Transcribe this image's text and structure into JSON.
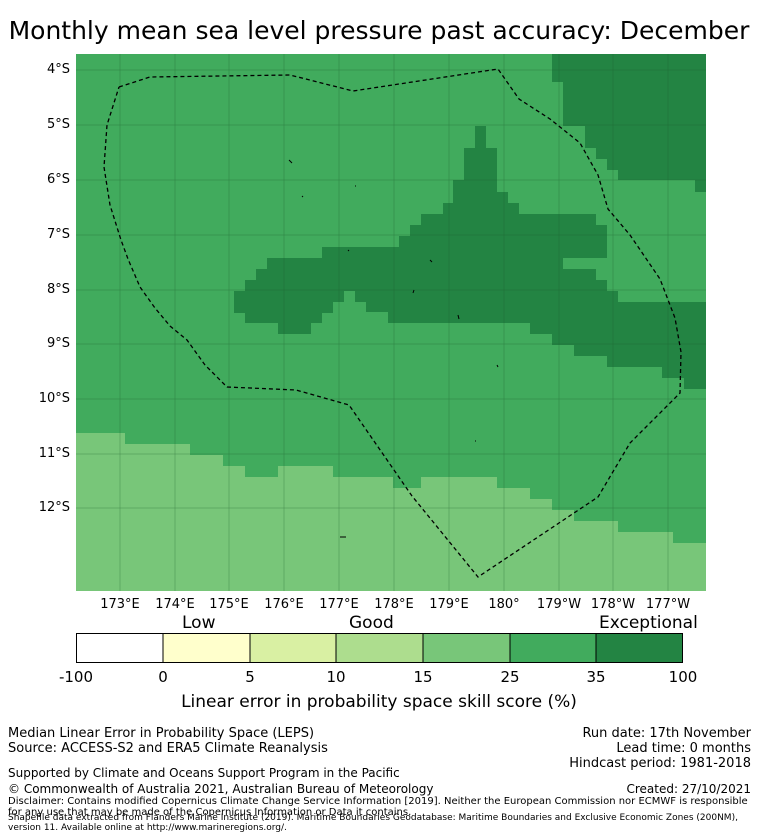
{
  "title": "Monthly mean sea level pressure past accuracy: December",
  "map": {
    "lat_labels": [
      "4°S",
      "5°S",
      "6°S",
      "7°S",
      "8°S",
      "9°S",
      "10°S",
      "11°S",
      "12°S"
    ],
    "lon_labels": [
      "173°E",
      "174°E",
      "175°E",
      "176°E",
      "177°E",
      "178°E",
      "179°E",
      "180°",
      "179°W",
      "178°W",
      "177°W"
    ],
    "colors": {
      "zone_15_25": "#78c679",
      "zone_25_35": "#41ab5d",
      "zone_35_100": "#238443",
      "grid": "#1d5c2d",
      "boundary": "#000000"
    }
  },
  "colorbar": {
    "categories": [
      "Low",
      "Good",
      "Exceptional"
    ],
    "ticks": [
      "-100",
      "0",
      "5",
      "10",
      "15",
      "25",
      "35",
      "100"
    ],
    "colors": [
      "#ffffff",
      "#ffffcc",
      "#d9f0a3",
      "#addd8e",
      "#78c679",
      "#41ab5d",
      "#238443"
    ],
    "label": "Linear error in probability space skill score (%)"
  },
  "info": {
    "method": "Median Linear Error in Probability Space (LEPS)",
    "source": "Source: ACCESS-S2 and ERA5 Climate Reanalysis",
    "run_date": "Run date: 17th November",
    "lead_time": "Lead time: 0 months",
    "hindcast": "Hindcast period: 1981-2018",
    "support": "Supported by Climate and Oceans Support Program in the Pacific",
    "copyright": "© Commonwealth of Australia 2021, Australian Bureau of Meteorology",
    "created": "Created: 27/10/2021",
    "disclaimer": "Disclaimer: Contains modified Copernicus Climate Change Service Information [2019]. Neither the European Commission nor ECMWF is responsible for any use that may be made of the Copernicus Information or Data it contains.",
    "shapefile": "Shapefile data extracted from Flanders Marine Institute (2019). Maritime Boundaries Geodatabase: Maritime Boundaries and Exclusive Economic Zones (200NM), version 11. Available online at http://www.marineregions.org/."
  }
}
